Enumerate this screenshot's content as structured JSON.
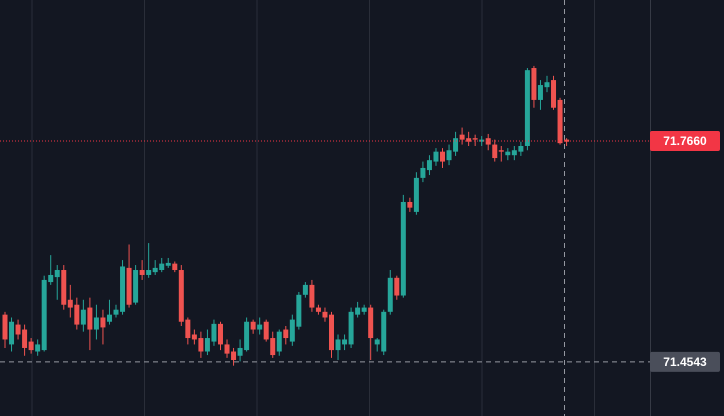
{
  "chart_data": {
    "type": "candlestick",
    "ylim": [
      71.378,
      71.965
    ],
    "up_color": "#26a69a",
    "down_color": "#ef5350",
    "open": [
      71.521,
      71.479,
      71.507,
      71.5,
      71.483,
      71.469,
      71.471,
      71.567,
      71.574,
      71.584,
      71.542,
      71.535,
      71.507,
      71.531,
      71.5,
      71.517,
      71.511,
      71.521,
      71.525,
      71.587,
      71.538,
      71.584,
      71.577,
      71.581,
      71.584,
      71.59,
      71.593,
      71.584,
      71.514,
      71.493,
      71.488,
      71.469,
      71.483,
      71.508,
      71.479,
      71.469,
      71.463,
      71.471,
      71.511,
      71.5,
      71.511,
      71.488,
      71.469,
      71.5,
      71.483,
      71.504,
      71.549,
      71.563,
      71.531,
      71.525,
      71.521,
      71.471,
      71.479,
      71.479,
      71.521,
      71.525,
      71.531,
      71.479,
      71.469,
      71.525,
      71.573,
      71.548,
      71.68,
      71.666,
      71.714,
      71.725,
      71.737,
      71.751,
      71.739,
      71.751,
      71.775,
      71.77,
      71.77,
      71.765,
      71.77,
      71.761,
      71.753,
      71.746,
      71.746,
      71.751,
      71.759,
      71.869,
      71.824,
      71.842,
      71.852,
      71.824,
      71.768
    ],
    "high": [
      71.525,
      71.517,
      71.514,
      71.507,
      71.488,
      71.486,
      71.576,
      71.605,
      71.591,
      71.591,
      71.563,
      71.545,
      71.542,
      71.545,
      71.535,
      71.528,
      71.542,
      71.535,
      71.598,
      71.62,
      71.591,
      71.598,
      71.622,
      71.598,
      71.601,
      71.601,
      71.596,
      71.591,
      71.517,
      71.5,
      71.497,
      71.5,
      71.514,
      71.511,
      71.486,
      71.474,
      71.486,
      71.517,
      71.514,
      71.517,
      71.514,
      71.497,
      71.5,
      71.505,
      71.521,
      71.553,
      71.567,
      71.57,
      71.535,
      71.531,
      71.525,
      71.493,
      71.493,
      71.531,
      71.539,
      71.535,
      71.535,
      71.488,
      71.528,
      71.584,
      71.576,
      71.69,
      71.686,
      71.722,
      71.737,
      71.746,
      71.756,
      71.756,
      71.761,
      71.779,
      71.785,
      71.779,
      71.775,
      71.773,
      71.776,
      71.768,
      71.759,
      71.756,
      71.759,
      71.765,
      71.869,
      71.872,
      71.852,
      71.858,
      71.858,
      71.827,
      71.77
    ],
    "low": [
      71.474,
      71.469,
      71.486,
      71.463,
      71.466,
      71.463,
      71.469,
      71.563,
      71.542,
      71.528,
      71.517,
      71.5,
      71.497,
      71.471,
      71.486,
      71.479,
      71.507,
      71.517,
      71.521,
      71.531,
      71.535,
      71.57,
      71.573,
      71.577,
      71.581,
      71.587,
      71.581,
      71.505,
      71.479,
      71.479,
      71.46,
      71.464,
      71.477,
      71.471,
      71.46,
      71.449,
      71.455,
      71.469,
      71.494,
      71.493,
      71.483,
      71.46,
      71.463,
      71.479,
      71.477,
      71.5,
      71.545,
      71.525,
      71.521,
      71.511,
      71.46,
      71.457,
      71.471,
      71.474,
      71.517,
      71.521,
      71.457,
      71.469,
      71.464,
      71.521,
      71.542,
      71.545,
      71.666,
      71.662,
      71.708,
      71.718,
      71.731,
      71.728,
      71.732,
      71.745,
      71.761,
      71.759,
      71.759,
      71.759,
      71.753,
      71.737,
      71.737,
      71.739,
      71.739,
      71.745,
      71.753,
      71.813,
      71.81,
      71.835,
      71.81,
      71.761,
      71.759
    ],
    "close": [
      71.486,
      71.511,
      71.493,
      71.474,
      71.471,
      71.479,
      71.57,
      71.577,
      71.584,
      71.535,
      71.531,
      71.507,
      71.528,
      71.5,
      71.517,
      71.503,
      71.521,
      71.528,
      71.589,
      71.535,
      71.584,
      71.577,
      71.584,
      71.587,
      71.593,
      71.594,
      71.584,
      71.511,
      71.488,
      71.486,
      71.469,
      71.488,
      71.508,
      71.479,
      71.466,
      71.457,
      71.474,
      71.511,
      71.5,
      71.507,
      71.486,
      71.464,
      71.497,
      71.488,
      71.514,
      71.549,
      71.563,
      71.531,
      71.525,
      71.517,
      71.471,
      71.486,
      71.486,
      71.525,
      71.531,
      71.531,
      71.488,
      71.486,
      71.525,
      71.573,
      71.548,
      71.68,
      71.672,
      71.714,
      71.728,
      71.739,
      71.751,
      71.737,
      71.753,
      71.77,
      71.768,
      71.765,
      71.768,
      71.768,
      71.761,
      71.742,
      71.751,
      71.751,
      71.753,
      71.759,
      71.866,
      71.824,
      71.845,
      71.849,
      71.813,
      71.763,
      71.765
    ],
    "price_line": {
      "value": 71.766,
      "label": "71.7660",
      "color": "#f23645"
    },
    "crosshair": {
      "value": 71.4543,
      "label": "71.4543",
      "color": "#4a4e5a"
    }
  }
}
